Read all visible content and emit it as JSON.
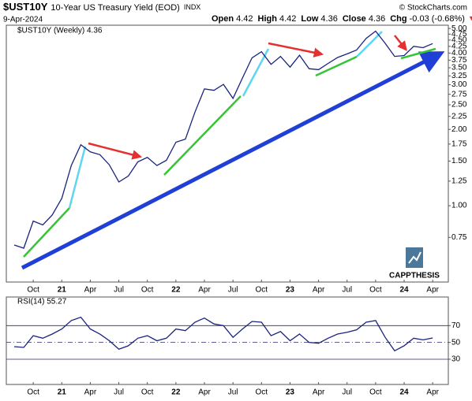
{
  "header": {
    "symbol": "$UST10Y",
    "name": "10-Year US Treasury Yield (EOD)",
    "exchange": "INDX",
    "date": "9-Apr-2024",
    "source": "© StockCharts.com",
    "quote": [
      {
        "label": "Open",
        "value": 4.42
      },
      {
        "label": "High",
        "value": 4.42
      },
      {
        "label": "Low",
        "value": 4.36
      },
      {
        "label": "Close",
        "value": 4.36
      },
      {
        "label": "Chg",
        "value": "-0.03 (-0.68%)"
      }
    ]
  },
  "logo": {
    "text": "CAPPTHESIS"
  },
  "chart_data": [
    {
      "type": "line",
      "legend": "$UST10Y (Weekly) 4.36",
      "categories": [
        null,
        null,
        "Oct",
        null,
        null,
        "21",
        null,
        null,
        "Apr",
        null,
        null,
        "Jul",
        null,
        null,
        "Oct",
        null,
        null,
        "22",
        null,
        null,
        "Apr",
        null,
        null,
        "Jul",
        null,
        null,
        "Oct",
        null,
        null,
        "23",
        null,
        null,
        "Apr",
        null,
        null,
        "Jul",
        null,
        null,
        "Oct",
        null,
        null,
        "24",
        null,
        null,
        "Apr"
      ],
      "series": [
        {
          "name": "$UST10Y",
          "color": "#1a237e",
          "values": [
            0.7,
            0.68,
            0.87,
            0.84,
            0.92,
            1.07,
            1.44,
            1.74,
            1.63,
            1.59,
            1.45,
            1.24,
            1.31,
            1.49,
            1.55,
            1.44,
            1.51,
            1.78,
            1.83,
            2.34,
            2.89,
            2.85,
            3.01,
            2.65,
            3.19,
            3.83,
            4.05,
            3.61,
            3.88,
            3.52,
            3.92,
            3.47,
            3.44,
            3.64,
            3.84,
            3.97,
            4.11,
            4.57,
            4.88,
            4.37,
            3.88,
            3.91,
            4.25,
            4.2,
            4.36
          ]
        }
      ],
      "log_scale": true,
      "ylim": [
        0.5,
        5.15
      ],
      "yticks": [
        0.75,
        {
          "value": 1,
          "label": "1.00"
        },
        1.25,
        {
          "value": 1.5,
          "label": "1.50"
        },
        1.75,
        {
          "value": 2,
          "label": "2.00"
        },
        2.25,
        {
          "value": 2.5,
          "label": "2.50"
        },
        2.75,
        {
          "value": 3,
          "label": "3.00"
        },
        3.25,
        {
          "value": 3.5,
          "label": "3.50"
        },
        3.75,
        {
          "value": 4,
          "label": "4.00"
        },
        4.25,
        {
          "value": 4.5,
          "label": "4.50"
        },
        4.75,
        {
          "value": 5,
          "label": "5.00"
        }
      ]
    },
    {
      "type": "line",
      "title": "RSI(14) 55.27",
      "categories": [
        null,
        null,
        "Oct",
        null,
        null,
        "21",
        null,
        null,
        "Apr",
        null,
        null,
        "Jul",
        null,
        null,
        "Oct",
        null,
        null,
        "22",
        null,
        null,
        "Apr",
        null,
        null,
        "Jul",
        null,
        null,
        "Oct",
        null,
        null,
        "23",
        null,
        null,
        "Apr",
        null,
        null,
        "Jul",
        null,
        null,
        "Oct",
        null,
        null,
        "24",
        null,
        null,
        "Apr"
      ],
      "series": [
        {
          "name": "RSI(14)",
          "color": "#1a237e",
          "values": [
            45,
            44,
            58,
            55,
            60,
            66,
            76,
            80,
            66,
            60,
            52,
            42,
            46,
            55,
            58,
            52,
            55,
            66,
            64,
            74,
            79,
            72,
            70,
            56,
            66,
            75,
            74,
            58,
            63,
            52,
            60,
            50,
            49,
            55,
            60,
            62,
            65,
            74,
            76,
            56,
            40,
            46,
            55,
            53,
            55.27
          ]
        }
      ],
      "ylim": [
        0,
        104
      ],
      "yticks": [
        30,
        50,
        70
      ]
    }
  ]
}
